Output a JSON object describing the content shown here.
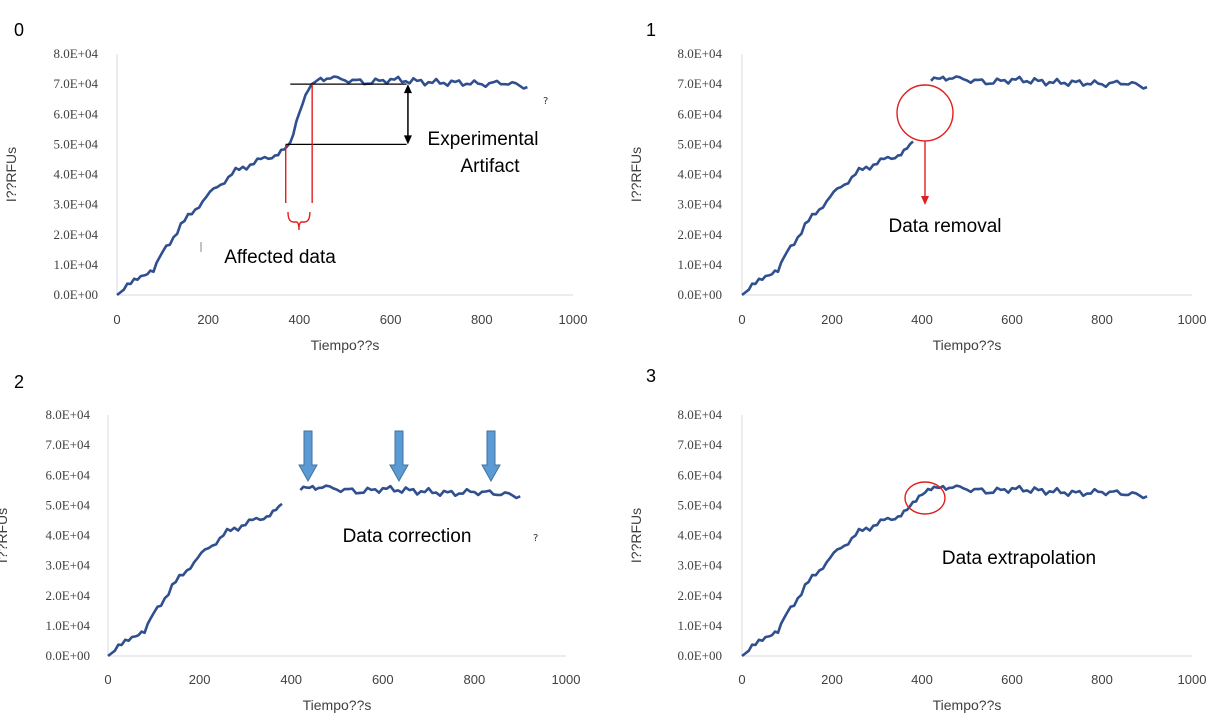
{
  "panels": [
    {
      "label": "0",
      "annotations": [
        "Experimental",
        "Artifact",
        "Affected data"
      ],
      "stray_glyph": "?"
    },
    {
      "label": "1",
      "annotations": [
        "Data removal"
      ]
    },
    {
      "label": "2",
      "annotations": [
        "Data correction"
      ],
      "stray_glyph": "?"
    },
    {
      "label": "3",
      "annotations": [
        "Data extrapolation"
      ]
    }
  ],
  "colors": {
    "series": "#2f4f8f",
    "highlight": "#e02020",
    "arrow_fill": "#5b9bd5",
    "arrow_stroke": "#41719c",
    "axis": "#d9d9d9"
  },
  "chart_data": [
    {
      "type": "line",
      "xlabel": "Tiempo??s",
      "ylabel": "I??RFUs",
      "xlim": [
        0,
        1000
      ],
      "ylim": [
        0,
        80000
      ],
      "x_ticks": [
        "0",
        "200",
        "400",
        "600",
        "800",
        "1000"
      ],
      "y_ticks": [
        "0.0E+00",
        "1.0E+04",
        "2.0E+04",
        "3.0E+04",
        "4.0E+04",
        "5.0E+04",
        "6.0E+04",
        "7.0E+04",
        "8.0E+04"
      ],
      "series": [
        {
          "x": [
            0,
            60,
            80,
            100,
            140,
            180,
            220,
            260,
            300,
            340,
            360,
            380,
            400,
            420,
            440,
            460,
            500,
            550,
            600,
            650,
            700,
            750,
            800,
            850,
            900
          ],
          "values": [
            0,
            7000,
            8000,
            14000,
            23000,
            30000,
            36000,
            41000,
            44000,
            46000,
            48000,
            50000,
            60000,
            68000,
            71500,
            72000,
            71500,
            70500,
            71500,
            71000,
            70500,
            70500,
            70000,
            70500,
            69000
          ]
        }
      ]
    },
    {
      "type": "line",
      "xlabel": "Tiempo??s",
      "ylabel": "I??RFUs",
      "xlim": [
        0,
        1000
      ],
      "ylim": [
        0,
        80000
      ],
      "x_ticks": [
        "0",
        "200",
        "400",
        "600",
        "800",
        "1000"
      ],
      "y_ticks": [
        "0.0E+00",
        "1.0E+04",
        "2.0E+04",
        "3.0E+04",
        "4.0E+04",
        "5.0E+04",
        "6.0E+04",
        "7.0E+04",
        "8.0E+04"
      ],
      "series": [
        {
          "x": [
            0,
            60,
            80,
            100,
            140,
            180,
            220,
            260,
            300,
            340,
            360,
            380
          ],
          "values": [
            0,
            7000,
            8000,
            14000,
            23000,
            30000,
            36000,
            41000,
            44000,
            46000,
            48000,
            51000
          ]
        },
        {
          "x": [
            420,
            440,
            460,
            500,
            550,
            600,
            650,
            700,
            750,
            800,
            850,
            900
          ],
          "values": [
            71000,
            72000,
            72000,
            71500,
            70500,
            71500,
            71000,
            70500,
            70500,
            70000,
            70500,
            69000
          ]
        }
      ]
    },
    {
      "type": "line",
      "xlabel": "Tiempo??s",
      "ylabel": "I??RFUs",
      "xlim": [
        0,
        1000
      ],
      "ylim": [
        0,
        80000
      ],
      "x_ticks": [
        "0",
        "200",
        "400",
        "600",
        "800",
        "1000"
      ],
      "y_ticks": [
        "0.0E+00",
        "1.0E+04",
        "2.0E+04",
        "3.0E+04",
        "4.0E+04",
        "5.0E+04",
        "6.0E+04",
        "7.0E+04",
        "8.0E+04"
      ],
      "series": [
        {
          "x": [
            0,
            60,
            80,
            100,
            140,
            180,
            220,
            260,
            300,
            340,
            360,
            380
          ],
          "values": [
            0,
            7000,
            8000,
            14000,
            23000,
            30000,
            36000,
            41000,
            44000,
            46000,
            48000,
            50500
          ]
        },
        {
          "x": [
            420,
            440,
            460,
            500,
            550,
            600,
            650,
            700,
            750,
            800,
            850,
            900
          ],
          "values": [
            55000,
            56000,
            56000,
            55500,
            54500,
            55500,
            55000,
            54500,
            54000,
            54500,
            54000,
            53000
          ]
        }
      ]
    },
    {
      "type": "line",
      "xlabel": "Tiempo??s",
      "ylabel": "I??RFUs",
      "xlim": [
        0,
        1000
      ],
      "ylim": [
        0,
        80000
      ],
      "x_ticks": [
        "0",
        "200",
        "400",
        "600",
        "800",
        "1000"
      ],
      "y_ticks": [
        "0.0E+00",
        "1.0E+04",
        "2.0E+04",
        "3.0E+04",
        "4.0E+04",
        "5.0E+04",
        "6.0E+04",
        "7.0E+04",
        "8.0E+04"
      ],
      "series": [
        {
          "x": [
            0,
            60,
            80,
            100,
            140,
            180,
            220,
            260,
            300,
            340,
            360,
            380,
            400,
            420,
            440,
            460,
            500,
            550,
            600,
            650,
            700,
            750,
            800,
            850,
            900
          ],
          "values": [
            0,
            7000,
            8000,
            14000,
            23000,
            30000,
            36000,
            41000,
            44000,
            46000,
            48000,
            50500,
            53000,
            55000,
            56000,
            56000,
            55500,
            54500,
            55500,
            55000,
            54500,
            54000,
            54500,
            54000,
            53000
          ]
        }
      ]
    }
  ]
}
